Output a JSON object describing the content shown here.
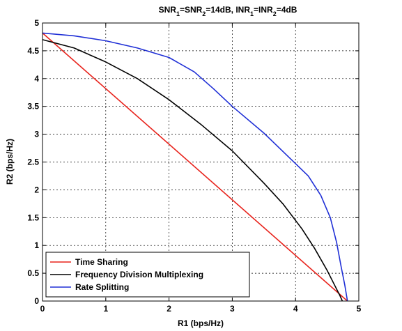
{
  "chart_data": {
    "type": "line",
    "title_parts": [
      {
        "text": "SNR",
        "sub": false
      },
      {
        "text": "1",
        "sub": true
      },
      {
        "text": "=SNR",
        "sub": false
      },
      {
        "text": "2",
        "sub": true
      },
      {
        "text": "=14dB, INR",
        "sub": false
      },
      {
        "text": "1",
        "sub": true
      },
      {
        "text": "=INR",
        "sub": false
      },
      {
        "text": "2",
        "sub": true
      },
      {
        "text": "=4dB",
        "sub": false
      }
    ],
    "xlabel": "R1 (bps/Hz)",
    "ylabel": "R2 (bps/Hz)",
    "xlim": [
      0,
      5
    ],
    "ylim": [
      0,
      5
    ],
    "xticks": [
      "0",
      "1",
      "2",
      "3",
      "4",
      "5"
    ],
    "yticks": [
      "0",
      "0.5",
      "1",
      "1.5",
      "2",
      "2.5",
      "3",
      "3.5",
      "4",
      "4.5",
      "5"
    ],
    "grid": true,
    "legend_position": "bottom-left",
    "series": [
      {
        "name": "Time Sharing",
        "color": "#e8231c",
        "points": [
          [
            0,
            4.82
          ],
          [
            4.82,
            0
          ]
        ]
      },
      {
        "name": "Frequency Division Multiplexing",
        "color": "#000000",
        "points": [
          [
            0,
            4.7
          ],
          [
            0.5,
            4.55
          ],
          [
            1.0,
            4.3
          ],
          [
            1.5,
            4.0
          ],
          [
            2.0,
            3.62
          ],
          [
            2.5,
            3.18
          ],
          [
            3.0,
            2.7
          ],
          [
            3.5,
            2.12
          ],
          [
            3.8,
            1.75
          ],
          [
            4.1,
            1.3
          ],
          [
            4.3,
            0.95
          ],
          [
            4.5,
            0.55
          ],
          [
            4.62,
            0.28
          ],
          [
            4.7,
            0.1
          ],
          [
            4.74,
            0
          ]
        ]
      },
      {
        "name": "Rate Splitting",
        "color": "#1f2fd6",
        "points": [
          [
            0,
            4.82
          ],
          [
            0.5,
            4.77
          ],
          [
            1.0,
            4.68
          ],
          [
            1.5,
            4.55
          ],
          [
            2.0,
            4.38
          ],
          [
            2.4,
            4.12
          ],
          [
            2.7,
            3.82
          ],
          [
            3.0,
            3.5
          ],
          [
            3.5,
            3.02
          ],
          [
            3.9,
            2.58
          ],
          [
            4.2,
            2.25
          ],
          [
            4.4,
            1.9
          ],
          [
            4.55,
            1.5
          ],
          [
            4.65,
            1.05
          ],
          [
            4.72,
            0.62
          ],
          [
            4.78,
            0.28
          ],
          [
            4.82,
            0
          ]
        ]
      }
    ]
  }
}
